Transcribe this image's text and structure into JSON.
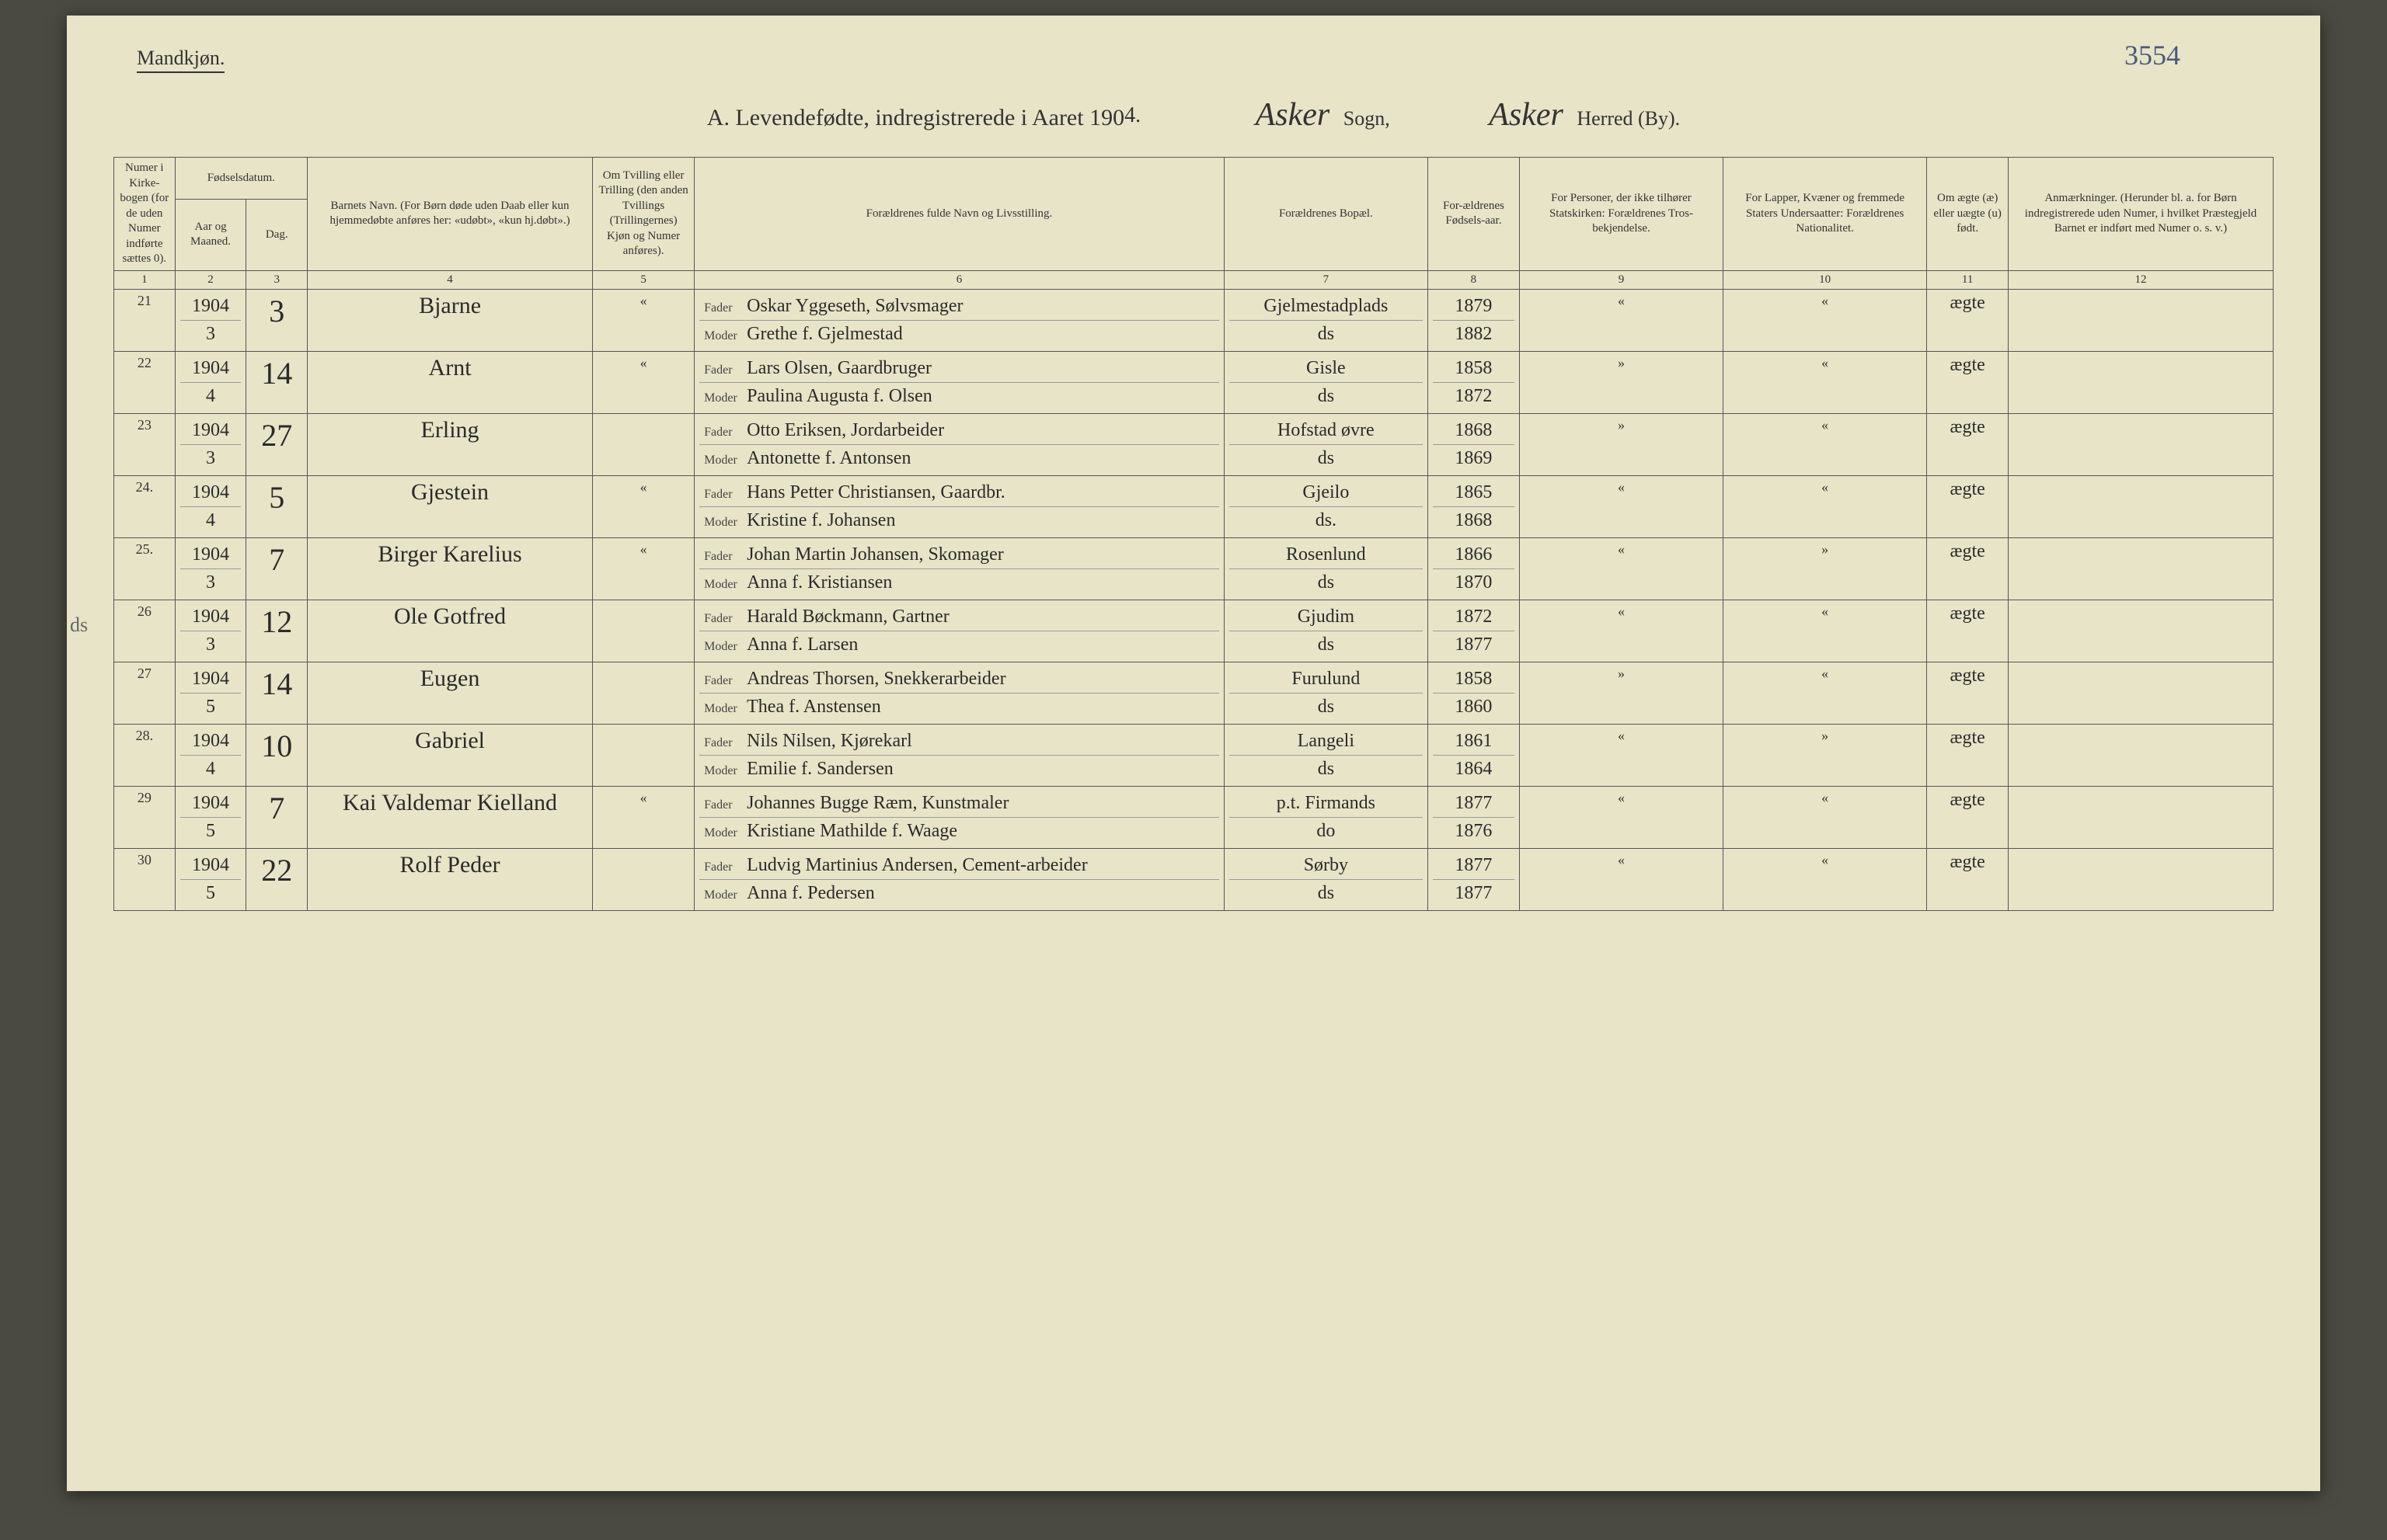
{
  "handwritten_page_number": "3554",
  "gender_heading": "Mandkjøn.",
  "title": {
    "main_prefix": "A.  Levendefødte, indregistrerede i Aaret 190",
    "year_suffix_hw": "4.",
    "sogn_hw": "Asker",
    "sogn_label": "Sogn,",
    "herred_hw": "Asker",
    "herred_label": "Herred (By)."
  },
  "headers": {
    "col1": "Numer i Kirke-bogen (for de uden Numer indførte sættes 0).",
    "col2_group": "Fødselsdatum.",
    "col2a": "Aar og Maaned.",
    "col2b": "Dag.",
    "col3": "Barnets Navn.\n(For Børn døde uden Daab eller kun hjemmedøbte anføres her: «udøbt», «kun hj.døbt».)",
    "col4": "Om Tvilling eller Trilling (den anden Tvillings (Trillingernes) Kjøn og Numer anføres).",
    "col5": "Forældrenes fulde Navn og Livsstilling.",
    "col6": "Forældrenes Bopæl.",
    "col7": "For-ældrenes Fødsels-aar.",
    "col8": "For Personer, der ikke tilhører Statskirken: Forældrenes Tros-bekjendelse.",
    "col9": "For Lapper, Kvæner og fremmede Staters Undersaatter: Forældrenes Nationalitet.",
    "col10": "Om ægte (æ) eller uægte (u) født.",
    "col11": "Anmærkninger.\n(Herunder bl. a. for Børn indregistrerede uden Numer, i hvilket Præstegjeld Barnet er indført med Numer o. s. v.)"
  },
  "numrow": [
    "1",
    "2",
    "3",
    "4",
    "5",
    "6",
    "7",
    "8",
    "9",
    "10",
    "11",
    "12"
  ],
  "parent_labels": {
    "father": "Fader",
    "mother": "Moder"
  },
  "margin_note": "ds",
  "rows": [
    {
      "num": "21",
      "year": "1904",
      "month": "3",
      "day": "3",
      "name": "Bjarne",
      "twin": "«",
      "father": "Oskar Yggeseth, Sølvsmager",
      "mother": "Grethe f. Gjelmestad",
      "residence": "Gjelmestadplads",
      "res_ditto": "ds",
      "fy_f": "1879",
      "fy_m": "1882",
      "col8": "«",
      "col9": "«",
      "legit": "ægte",
      "remarks": ""
    },
    {
      "num": "22",
      "year": "1904",
      "month": "4",
      "day": "14",
      "name": "Arnt",
      "twin": "«",
      "father": "Lars Olsen, Gaardbruger",
      "mother": "Paulina Augusta f. Olsen",
      "residence": "Gisle",
      "res_ditto": "ds",
      "fy_f": "1858",
      "fy_m": "1872",
      "col8": "»",
      "col9": "«",
      "legit": "ægte",
      "remarks": ""
    },
    {
      "num": "23",
      "year": "1904",
      "month": "3",
      "day": "27",
      "name": "Erling",
      "twin": "",
      "father": "Otto Eriksen, Jordarbeider",
      "mother": "Antonette f. Antonsen",
      "residence": "Hofstad øvre",
      "res_ditto": "ds",
      "fy_f": "1868",
      "fy_m": "1869",
      "col8": "»",
      "col9": "«",
      "legit": "ægte",
      "remarks": ""
    },
    {
      "num": "24.",
      "year": "1904",
      "month": "4",
      "day": "5",
      "name": "Gjestein",
      "twin": "«",
      "father": "Hans Petter Christiansen, Gaardbr.",
      "mother": "Kristine f. Johansen",
      "residence": "Gjeilo",
      "res_ditto": "ds.",
      "fy_f": "1865",
      "fy_m": "1868",
      "col8": "«",
      "col9": "«",
      "legit": "ægte",
      "remarks": ""
    },
    {
      "num": "25.",
      "year": "1904",
      "month": "3",
      "day": "7",
      "name": "Birger Karelius",
      "twin": "«",
      "father": "Johan Martin Johansen, Skomager",
      "mother": "Anna f. Kristiansen",
      "residence": "Rosenlund",
      "res_ditto": "ds",
      "fy_f": "1866",
      "fy_m": "1870",
      "col8": "«",
      "col9": "»",
      "legit": "ægte",
      "remarks": ""
    },
    {
      "num": "26",
      "year": "1904",
      "month": "3",
      "day": "12",
      "name": "Ole Gotfred",
      "twin": "",
      "father": "Harald Bøckmann, Gartner",
      "mother": "Anna f. Larsen",
      "residence": "Gjudim",
      "res_ditto": "ds",
      "fy_f": "1872",
      "fy_m": "1877",
      "col8": "«",
      "col9": "«",
      "legit": "ægte",
      "remarks": ""
    },
    {
      "num": "27",
      "year": "1904",
      "month": "5",
      "day": "14",
      "name": "Eugen",
      "twin": "",
      "father": "Andreas Thorsen, Snekkerarbeider",
      "mother": "Thea f. Anstensen",
      "residence": "Furulund",
      "res_ditto": "ds",
      "fy_f": "1858",
      "fy_m": "1860",
      "col8": "»",
      "col9": "«",
      "legit": "ægte",
      "remarks": ""
    },
    {
      "num": "28.",
      "year": "1904",
      "month": "4",
      "day": "10",
      "name": "Gabriel",
      "twin": "",
      "father": "Nils Nilsen, Kjørekarl",
      "mother": "Emilie f. Sandersen",
      "residence": "Langeli",
      "res_ditto": "ds",
      "fy_f": "1861",
      "fy_m": "1864",
      "col8": "«",
      "col9": "»",
      "legit": "ægte",
      "remarks": ""
    },
    {
      "num": "29",
      "year": "1904",
      "month": "5",
      "day": "7",
      "name": "Kai Valdemar Kielland",
      "twin": "«",
      "father": "Johannes Bugge Ræm, Kunstmaler",
      "mother": "Kristiane Mathilde f. Waage",
      "residence": "p.t. Firmands",
      "res_ditto": "do",
      "fy_f": "1877",
      "fy_m": "1876",
      "col8": "«",
      "col9": "«",
      "legit": "ægte",
      "remarks": ""
    },
    {
      "num": "30",
      "year": "1904",
      "month": "5",
      "day": "22",
      "name": "Rolf Peder",
      "twin": "",
      "father": "Ludvig Martinius Andersen, Cement-arbeider",
      "mother": "Anna f. Pedersen",
      "residence": "Sørby",
      "res_ditto": "ds",
      "fy_f": "1877",
      "fy_m": "1877",
      "col8": "«",
      "col9": "«",
      "legit": "ægte",
      "remarks": ""
    }
  ]
}
